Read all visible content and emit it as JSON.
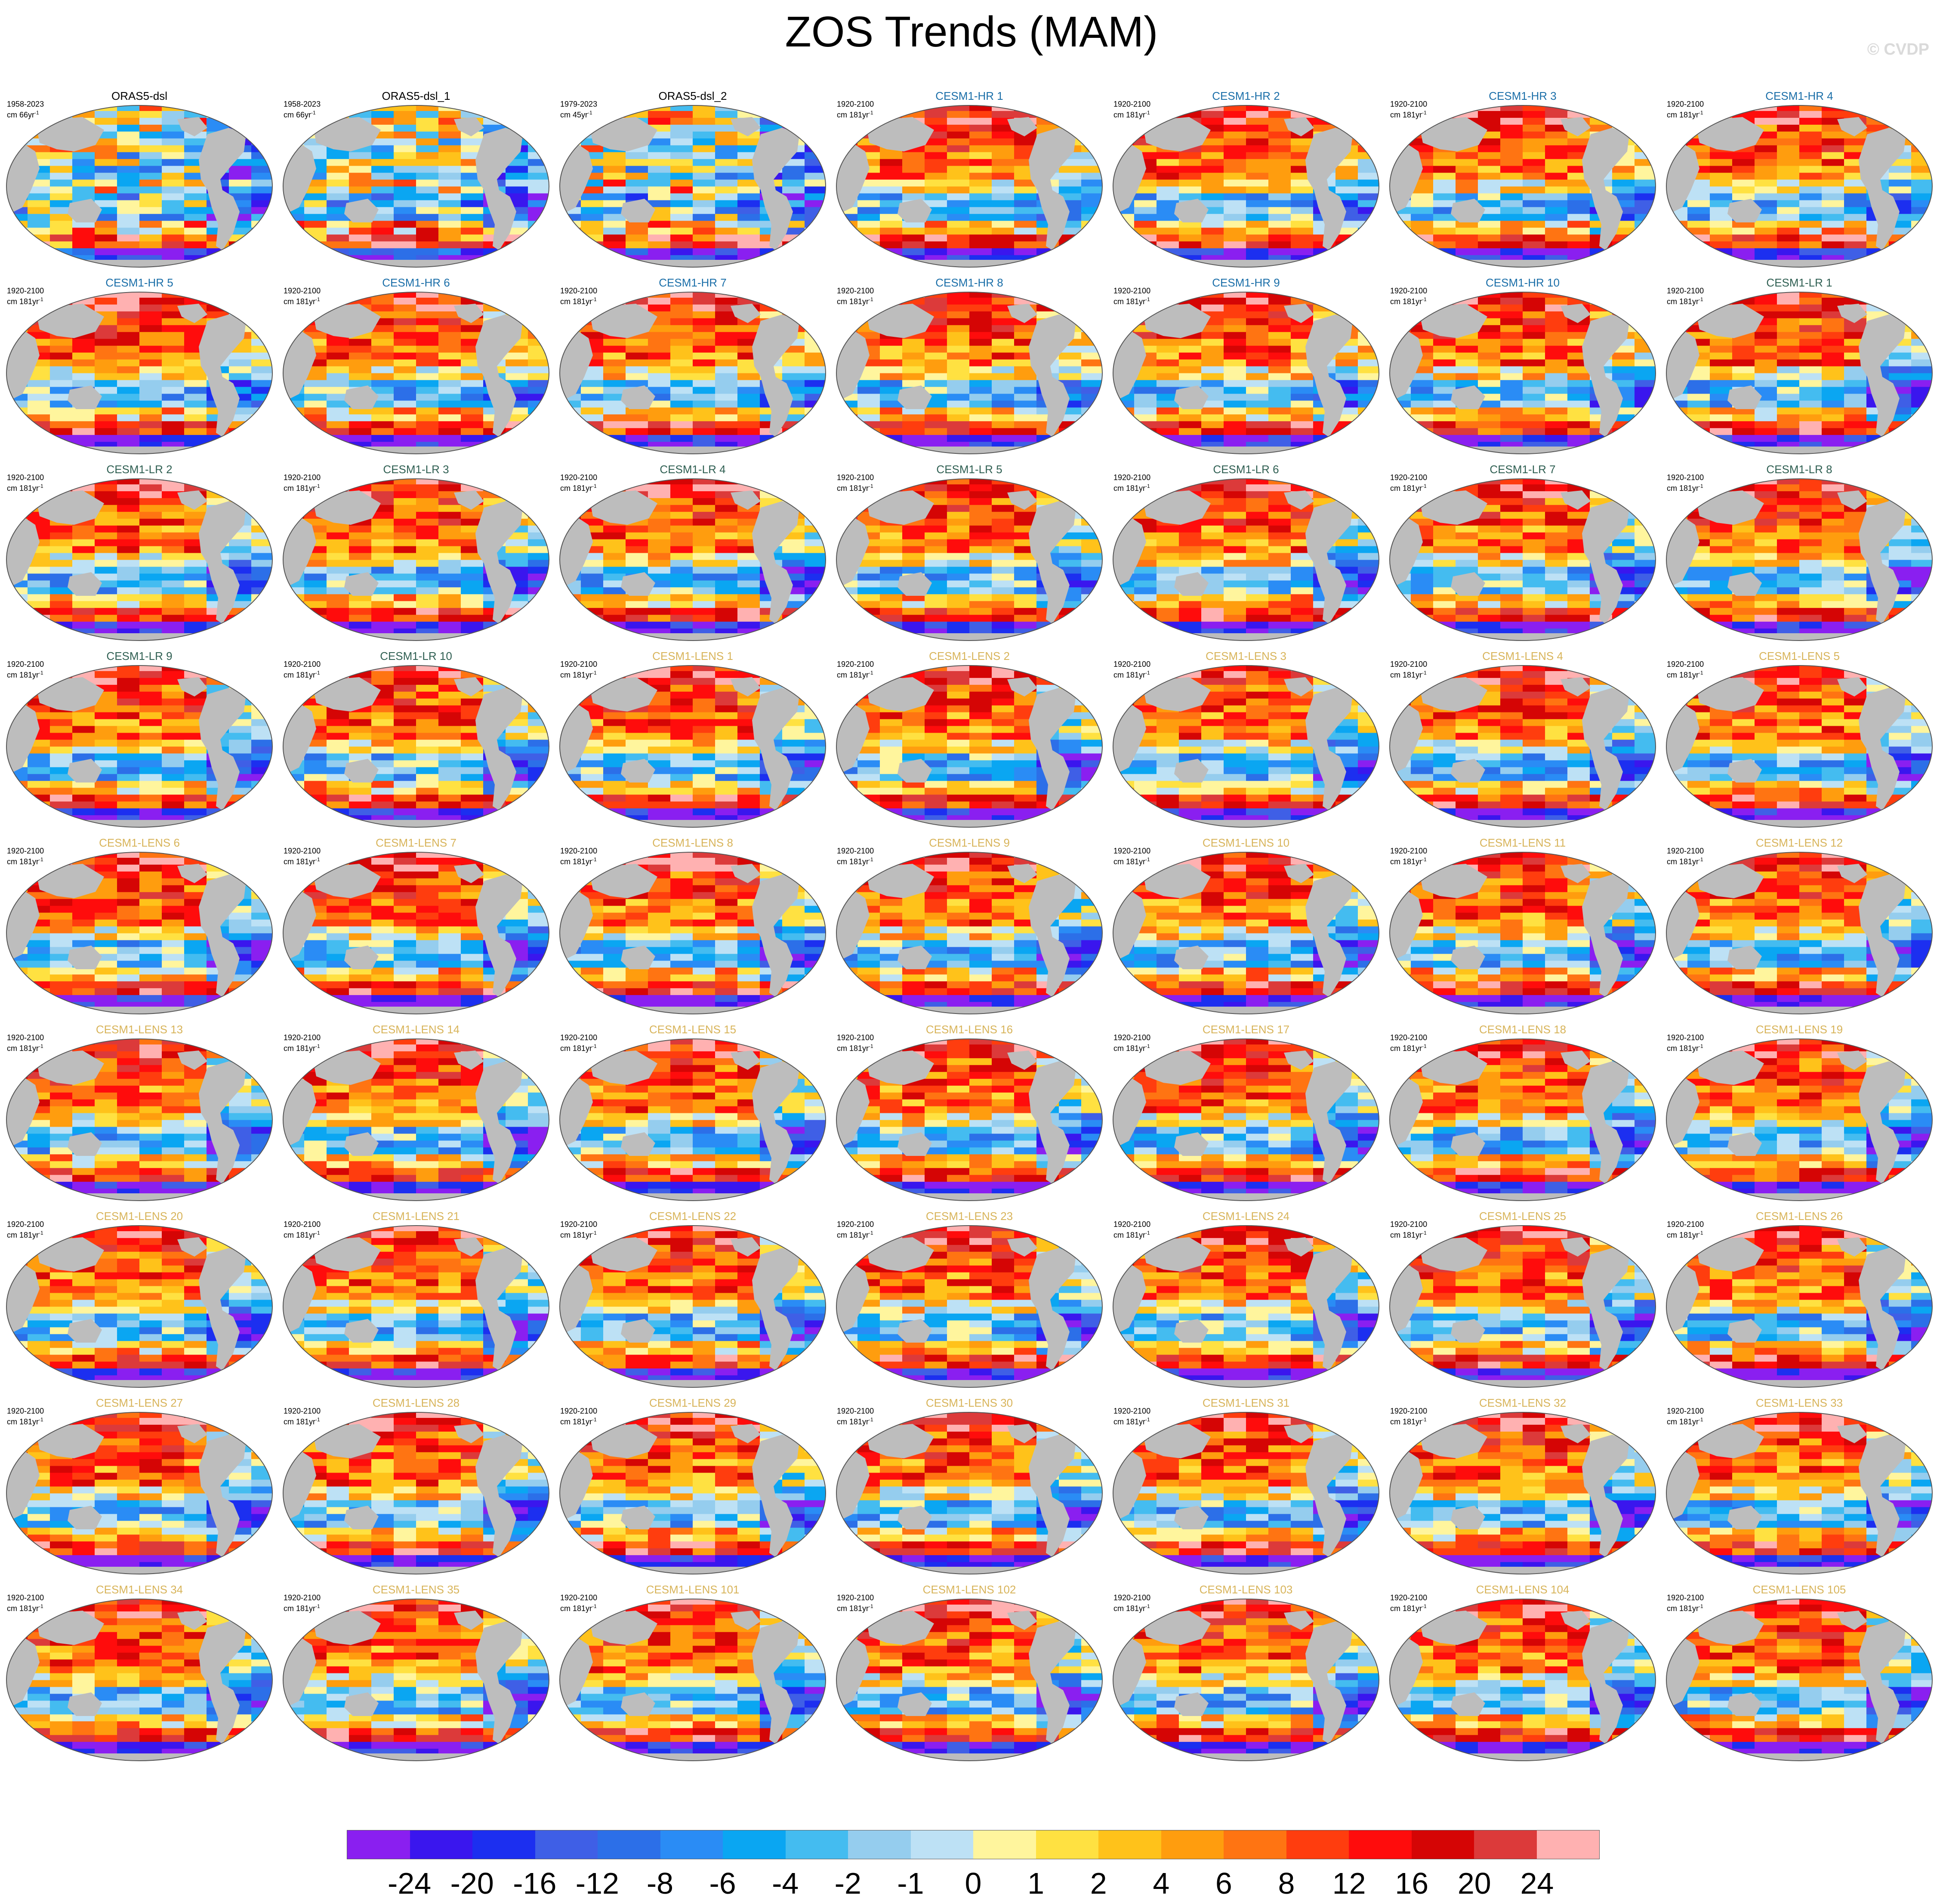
{
  "title": "ZOS Trends (MAM)",
  "watermark": "© CVDP",
  "panels": [
    {
      "title": "ORAS5-dsl",
      "period": "1958-2023",
      "units": "cm 66yr",
      "units_exp": "-1",
      "group": "obs"
    },
    {
      "title": "ORAS5-dsl_1",
      "period": "1958-2023",
      "units": "cm 66yr",
      "units_exp": "-1",
      "group": "obs"
    },
    {
      "title": "ORAS5-dsl_2",
      "period": "1979-2023",
      "units": "cm 45yr",
      "units_exp": "-1",
      "group": "obs"
    },
    {
      "title": "CESM1-HR 1",
      "period": "1920-2100",
      "units": "cm 181yr",
      "units_exp": "-1",
      "group": "hr"
    },
    {
      "title": "CESM1-HR 2",
      "period": "1920-2100",
      "units": "cm 181yr",
      "units_exp": "-1",
      "group": "hr"
    },
    {
      "title": "CESM1-HR 3",
      "period": "1920-2100",
      "units": "cm 181yr",
      "units_exp": "-1",
      "group": "hr"
    },
    {
      "title": "CESM1-HR 4",
      "period": "1920-2100",
      "units": "cm 181yr",
      "units_exp": "-1",
      "group": "hr"
    },
    {
      "title": "CESM1-HR 5",
      "period": "1920-2100",
      "units": "cm 181yr",
      "units_exp": "-1",
      "group": "hr"
    },
    {
      "title": "CESM1-HR 6",
      "period": "1920-2100",
      "units": "cm 181yr",
      "units_exp": "-1",
      "group": "hr"
    },
    {
      "title": "CESM1-HR 7",
      "period": "1920-2100",
      "units": "cm 181yr",
      "units_exp": "-1",
      "group": "hr"
    },
    {
      "title": "CESM1-HR 8",
      "period": "1920-2100",
      "units": "cm 181yr",
      "units_exp": "-1",
      "group": "hr"
    },
    {
      "title": "CESM1-HR 9",
      "period": "1920-2100",
      "units": "cm 181yr",
      "units_exp": "-1",
      "group": "hr"
    },
    {
      "title": "CESM1-HR 10",
      "period": "1920-2100",
      "units": "cm 181yr",
      "units_exp": "-1",
      "group": "hr"
    },
    {
      "title": "CESM1-LR 1",
      "period": "1920-2100",
      "units": "cm 181yr",
      "units_exp": "-1",
      "group": "lr"
    },
    {
      "title": "CESM1-LR 2",
      "period": "1920-2100",
      "units": "cm 181yr",
      "units_exp": "-1",
      "group": "lr"
    },
    {
      "title": "CESM1-LR 3",
      "period": "1920-2100",
      "units": "cm 181yr",
      "units_exp": "-1",
      "group": "lr"
    },
    {
      "title": "CESM1-LR 4",
      "period": "1920-2100",
      "units": "cm 181yr",
      "units_exp": "-1",
      "group": "lr"
    },
    {
      "title": "CESM1-LR 5",
      "period": "1920-2100",
      "units": "cm 181yr",
      "units_exp": "-1",
      "group": "lr"
    },
    {
      "title": "CESM1-LR 6",
      "period": "1920-2100",
      "units": "cm 181yr",
      "units_exp": "-1",
      "group": "lr"
    },
    {
      "title": "CESM1-LR 7",
      "period": "1920-2100",
      "units": "cm 181yr",
      "units_exp": "-1",
      "group": "lr"
    },
    {
      "title": "CESM1-LR 8",
      "period": "1920-2100",
      "units": "cm 181yr",
      "units_exp": "-1",
      "group": "lr"
    },
    {
      "title": "CESM1-LR 9",
      "period": "1920-2100",
      "units": "cm 181yr",
      "units_exp": "-1",
      "group": "lr"
    },
    {
      "title": "CESM1-LR 10",
      "period": "1920-2100",
      "units": "cm 181yr",
      "units_exp": "-1",
      "group": "lr"
    },
    {
      "title": "CESM1-LENS 1",
      "period": "1920-2100",
      "units": "cm 181yr",
      "units_exp": "-1",
      "group": "lens"
    },
    {
      "title": "CESM1-LENS 2",
      "period": "1920-2100",
      "units": "cm 181yr",
      "units_exp": "-1",
      "group": "lens"
    },
    {
      "title": "CESM1-LENS 3",
      "period": "1920-2100",
      "units": "cm 181yr",
      "units_exp": "-1",
      "group": "lens"
    },
    {
      "title": "CESM1-LENS 4",
      "period": "1920-2100",
      "units": "cm 181yr",
      "units_exp": "-1",
      "group": "lens"
    },
    {
      "title": "CESM1-LENS 5",
      "period": "1920-2100",
      "units": "cm 181yr",
      "units_exp": "-1",
      "group": "lens"
    },
    {
      "title": "CESM1-LENS 6",
      "period": "1920-2100",
      "units": "cm 181yr",
      "units_exp": "-1",
      "group": "lens"
    },
    {
      "title": "CESM1-LENS 7",
      "period": "1920-2100",
      "units": "cm 181yr",
      "units_exp": "-1",
      "group": "lens"
    },
    {
      "title": "CESM1-LENS 8",
      "period": "1920-2100",
      "units": "cm 181yr",
      "units_exp": "-1",
      "group": "lens"
    },
    {
      "title": "CESM1-LENS 9",
      "period": "1920-2100",
      "units": "cm 181yr",
      "units_exp": "-1",
      "group": "lens"
    },
    {
      "title": "CESM1-LENS 10",
      "period": "1920-2100",
      "units": "cm 181yr",
      "units_exp": "-1",
      "group": "lens"
    },
    {
      "title": "CESM1-LENS 11",
      "period": "1920-2100",
      "units": "cm 181yr",
      "units_exp": "-1",
      "group": "lens"
    },
    {
      "title": "CESM1-LENS 12",
      "period": "1920-2100",
      "units": "cm 181yr",
      "units_exp": "-1",
      "group": "lens"
    },
    {
      "title": "CESM1-LENS 13",
      "period": "1920-2100",
      "units": "cm 181yr",
      "units_exp": "-1",
      "group": "lens"
    },
    {
      "title": "CESM1-LENS 14",
      "period": "1920-2100",
      "units": "cm 181yr",
      "units_exp": "-1",
      "group": "lens"
    },
    {
      "title": "CESM1-LENS 15",
      "period": "1920-2100",
      "units": "cm 181yr",
      "units_exp": "-1",
      "group": "lens"
    },
    {
      "title": "CESM1-LENS 16",
      "period": "1920-2100",
      "units": "cm 181yr",
      "units_exp": "-1",
      "group": "lens"
    },
    {
      "title": "CESM1-LENS 17",
      "period": "1920-2100",
      "units": "cm 181yr",
      "units_exp": "-1",
      "group": "lens"
    },
    {
      "title": "CESM1-LENS 18",
      "period": "1920-2100",
      "units": "cm 181yr",
      "units_exp": "-1",
      "group": "lens"
    },
    {
      "title": "CESM1-LENS 19",
      "period": "1920-2100",
      "units": "cm 181yr",
      "units_exp": "-1",
      "group": "lens"
    },
    {
      "title": "CESM1-LENS 20",
      "period": "1920-2100",
      "units": "cm 181yr",
      "units_exp": "-1",
      "group": "lens"
    },
    {
      "title": "CESM1-LENS 21",
      "period": "1920-2100",
      "units": "cm 181yr",
      "units_exp": "-1",
      "group": "lens"
    },
    {
      "title": "CESM1-LENS 22",
      "period": "1920-2100",
      "units": "cm 181yr",
      "units_exp": "-1",
      "group": "lens"
    },
    {
      "title": "CESM1-LENS 23",
      "period": "1920-2100",
      "units": "cm 181yr",
      "units_exp": "-1",
      "group": "lens"
    },
    {
      "title": "CESM1-LENS 24",
      "period": "1920-2100",
      "units": "cm 181yr",
      "units_exp": "-1",
      "group": "lens"
    },
    {
      "title": "CESM1-LENS 25",
      "period": "1920-2100",
      "units": "cm 181yr",
      "units_exp": "-1",
      "group": "lens"
    },
    {
      "title": "CESM1-LENS 26",
      "period": "1920-2100",
      "units": "cm 181yr",
      "units_exp": "-1",
      "group": "lens"
    },
    {
      "title": "CESM1-LENS 27",
      "period": "1920-2100",
      "units": "cm 181yr",
      "units_exp": "-1",
      "group": "lens"
    },
    {
      "title": "CESM1-LENS 28",
      "period": "1920-2100",
      "units": "cm 181yr",
      "units_exp": "-1",
      "group": "lens"
    },
    {
      "title": "CESM1-LENS 29",
      "period": "1920-2100",
      "units": "cm 181yr",
      "units_exp": "-1",
      "group": "lens"
    },
    {
      "title": "CESM1-LENS 30",
      "period": "1920-2100",
      "units": "cm 181yr",
      "units_exp": "-1",
      "group": "lens"
    },
    {
      "title": "CESM1-LENS 31",
      "period": "1920-2100",
      "units": "cm 181yr",
      "units_exp": "-1",
      "group": "lens"
    },
    {
      "title": "CESM1-LENS 32",
      "period": "1920-2100",
      "units": "cm 181yr",
      "units_exp": "-1",
      "group": "lens"
    },
    {
      "title": "CESM1-LENS 33",
      "period": "1920-2100",
      "units": "cm 181yr",
      "units_exp": "-1",
      "group": "lens"
    },
    {
      "title": "CESM1-LENS 34",
      "period": "1920-2100",
      "units": "cm 181yr",
      "units_exp": "-1",
      "group": "lens"
    },
    {
      "title": "CESM1-LENS 35",
      "period": "1920-2100",
      "units": "cm 181yr",
      "units_exp": "-1",
      "group": "lens"
    },
    {
      "title": "CESM1-LENS 101",
      "period": "1920-2100",
      "units": "cm 181yr",
      "units_exp": "-1",
      "group": "lens"
    },
    {
      "title": "CESM1-LENS 102",
      "period": "1920-2100",
      "units": "cm 181yr",
      "units_exp": "-1",
      "group": "lens"
    },
    {
      "title": "CESM1-LENS 103",
      "period": "1920-2100",
      "units": "cm 181yr",
      "units_exp": "-1",
      "group": "lens"
    },
    {
      "title": "CESM1-LENS 104",
      "period": "1920-2100",
      "units": "cm 181yr",
      "units_exp": "-1",
      "group": "lens"
    },
    {
      "title": "CESM1-LENS 105",
      "period": "1920-2100",
      "units": "cm 181yr",
      "units_exp": "-1",
      "group": "lens"
    }
  ],
  "group_colors": {
    "obs": "#000000",
    "hr": "#1a6ea8",
    "lr": "#2f5f52",
    "lens": "#d8b45a"
  },
  "colorbar": {
    "labels": [
      "-24",
      "-20",
      "-16",
      "-12",
      "-8",
      "-6",
      "-4",
      "-2",
      "-1",
      "0",
      "1",
      "2",
      "4",
      "6",
      "8",
      "12",
      "16",
      "20",
      "24"
    ],
    "colors": [
      "#8a1ff0",
      "#3a16ee",
      "#1c2ff0",
      "#3f5fe6",
      "#2c6fe8",
      "#2a8cf5",
      "#0aa6f2",
      "#44bcf0",
      "#95cdee",
      "#bde1f5",
      "#fff59d",
      "#ffe141",
      "#ffc21a",
      "#ff9d0e",
      "#ff7412",
      "#ff3d0e",
      "#ff0c0c",
      "#d50505",
      "#dc3a3a",
      "#ffb1b1"
    ]
  },
  "map_colors": {
    "land": "#bdbdbd",
    "ocean_frame": "#555555"
  }
}
